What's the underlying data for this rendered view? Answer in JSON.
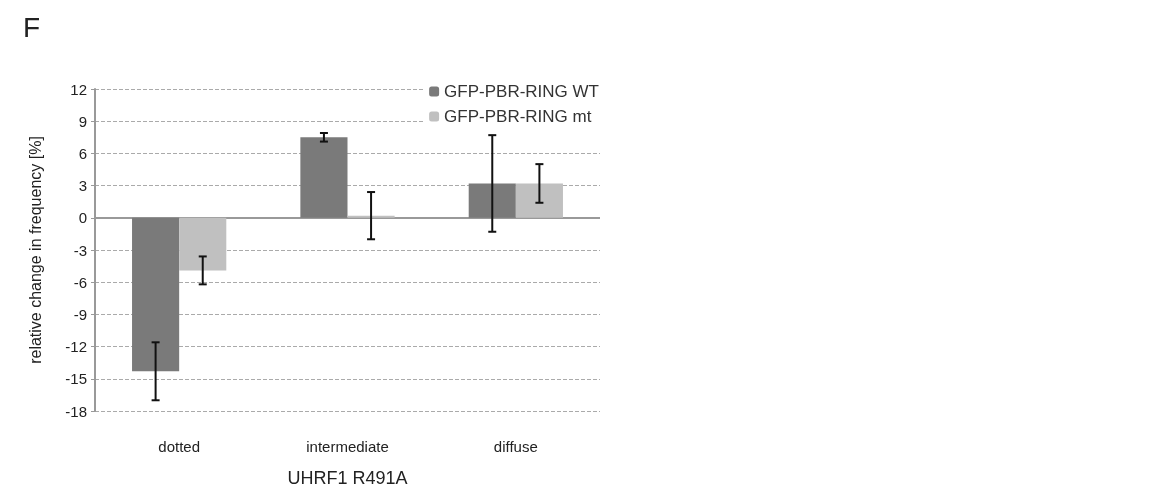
{
  "chart_data": {
    "type": "bar",
    "title": "F",
    "xlabel": "UHRF1 R491A",
    "ylabel": "relative change in frequency [%]",
    "categories": [
      "dotted",
      "intermediate",
      "diffuse"
    ],
    "series": [
      {
        "name": "GFP-PBR-RING WT",
        "color": "#7a7a7a",
        "values": [
          -14.3,
          7.5,
          3.2
        ],
        "errors": [
          2.7,
          0.4,
          4.5
        ]
      },
      {
        "name": "GFP-PBR-RING mt",
        "color": "#c0c0c0",
        "values": [
          -4.9,
          0.2,
          3.2
        ],
        "errors": [
          1.3,
          2.2,
          1.8
        ]
      }
    ],
    "ylim": [
      -18,
      12
    ],
    "yticks": [
      -18,
      -15,
      -12,
      -9,
      -6,
      -3,
      0,
      3,
      6,
      9,
      12
    ],
    "grid": "y",
    "legend": "top right"
  }
}
